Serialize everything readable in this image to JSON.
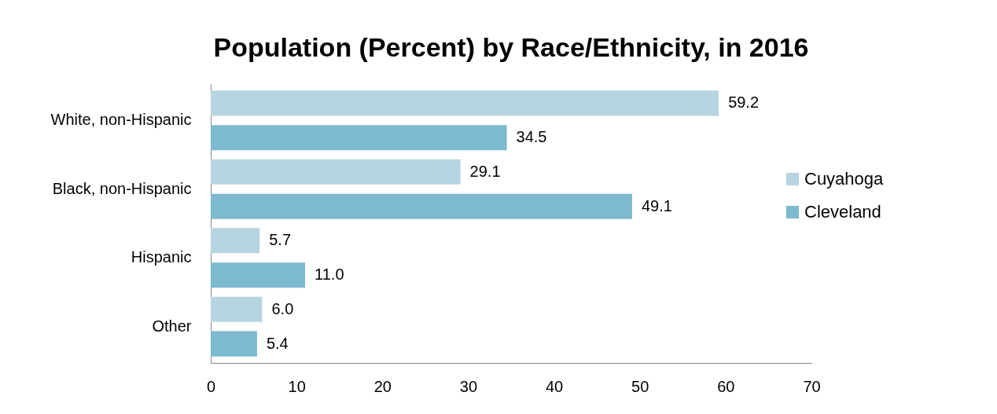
{
  "chart_data": {
    "type": "bar",
    "orientation": "horizontal",
    "title": "Population (Percent) by Race/Ethnicity, in 2016",
    "categories": [
      "White, non-Hispanic",
      "Black, non-Hispanic",
      "Hispanic",
      "Other"
    ],
    "series": [
      {
        "name": "Cuyahoga",
        "color": "#b7d5e0",
        "values": [
          59.2,
          29.1,
          5.7,
          6.0
        ],
        "value_labels": [
          "59.2",
          "29.1",
          "5.7",
          "6.0"
        ]
      },
      {
        "name": "Cleveland",
        "color": "#7db9cf",
        "values": [
          34.5,
          49.1,
          11.0,
          5.4
        ],
        "value_labels": [
          "34.5",
          "49.1",
          "11.0",
          "5.4"
        ]
      }
    ],
    "xlim": [
      0,
      70
    ],
    "xticks": [
      0,
      10,
      20,
      30,
      40,
      50,
      60,
      70
    ],
    "legend": "right",
    "grid": false
  }
}
